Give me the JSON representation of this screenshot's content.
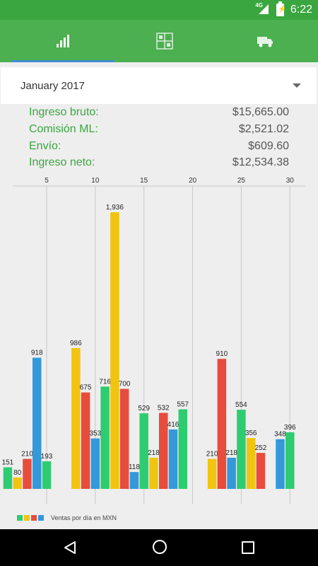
{
  "status_bar": {
    "time": "6:22",
    "network": "4G"
  },
  "tabs": [
    {
      "icon": "bar-chart-icon",
      "selected": true
    },
    {
      "icon": "grid-calculator-icon",
      "selected": false
    },
    {
      "icon": "delivery-truck-icon",
      "selected": false
    }
  ],
  "month_selector": {
    "value": "January 2017"
  },
  "summary": [
    {
      "label": "Ingreso bruto:",
      "value": "$15,665.00"
    },
    {
      "label": "Comisión ML:",
      "value": "$2,521.02"
    },
    {
      "label": "Envío:",
      "value": "$609.60"
    },
    {
      "label": "Ingreso neto:",
      "value": "$12,534.38"
    }
  ],
  "colors": {
    "green": "#2ecc71",
    "yellow": "#f1c40f",
    "red": "#e74c3c",
    "blue": "#3498db",
    "appbar": "#4caf50",
    "statusbar": "#3aa63f"
  },
  "chart_data": {
    "type": "bar",
    "x_ticks": [
      5,
      10,
      15,
      20,
      25,
      30
    ],
    "xlim": [
      0,
      31
    ],
    "ylim": [
      0,
      2050
    ],
    "legend": "Ventas por día en MXN",
    "legend_position": "bottom-left",
    "bars": [
      {
        "x": 1,
        "value": 151,
        "color": "green"
      },
      {
        "x": 2,
        "value": 80,
        "color": "yellow"
      },
      {
        "x": 3,
        "value": 210,
        "color": "red"
      },
      {
        "x": 4,
        "value": 918,
        "color": "blue"
      },
      {
        "x": 5,
        "value": 193,
        "color": "green"
      },
      {
        "x": 8,
        "value": 986,
        "color": "yellow"
      },
      {
        "x": 9,
        "value": 675,
        "color": "red"
      },
      {
        "x": 10,
        "value": 353,
        "color": "blue"
      },
      {
        "x": 11,
        "value": 716,
        "color": "green"
      },
      {
        "x": 12,
        "value": 1936,
        "color": "yellow"
      },
      {
        "x": 13,
        "value": 700,
        "color": "red"
      },
      {
        "x": 14,
        "value": 118,
        "color": "blue"
      },
      {
        "x": 15,
        "value": 529,
        "color": "green"
      },
      {
        "x": 16,
        "value": 218,
        "color": "yellow"
      },
      {
        "x": 17,
        "value": 532,
        "color": "red"
      },
      {
        "x": 18,
        "value": 416,
        "color": "blue"
      },
      {
        "x": 19,
        "value": 557,
        "color": "green"
      },
      {
        "x": 22,
        "value": 210,
        "color": "yellow"
      },
      {
        "x": 23,
        "value": 910,
        "color": "red"
      },
      {
        "x": 24,
        "value": 218,
        "color": "blue"
      },
      {
        "x": 25,
        "value": 554,
        "color": "green"
      },
      {
        "x": 26,
        "value": 356,
        "color": "yellow"
      },
      {
        "x": 27,
        "value": 252,
        "color": "red"
      },
      {
        "x": 29,
        "value": 348,
        "color": "blue"
      },
      {
        "x": 30,
        "value": 396,
        "color": "green"
      }
    ]
  }
}
